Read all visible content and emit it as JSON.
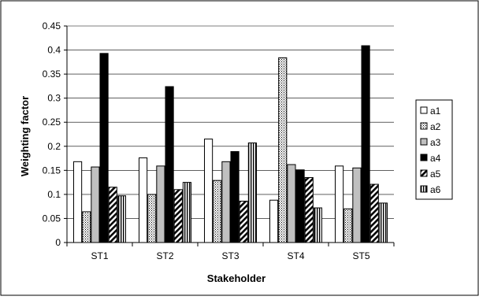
{
  "chart_data": {
    "type": "bar",
    "xlabel": "Stakeholder",
    "ylabel": "Weighting factor",
    "categories": [
      "ST1",
      "ST2",
      "ST3",
      "ST4",
      "ST5"
    ],
    "ylim": [
      0,
      0.45
    ],
    "yticks": [
      "0",
      "0.05",
      "0.1",
      "0.15",
      "0.2",
      "0.25",
      "0.3",
      "0.35",
      "0.4",
      "0.45"
    ],
    "grid": "horizontal",
    "legend_position": "right",
    "series": [
      {
        "name": "a1",
        "values": [
          0.168,
          0.176,
          0.215,
          0.088,
          0.159
        ],
        "pattern": "white"
      },
      {
        "name": "a2",
        "values": [
          0.064,
          0.1,
          0.129,
          0.384,
          0.07
        ],
        "pattern": "dotted"
      },
      {
        "name": "a3",
        "values": [
          0.157,
          0.159,
          0.168,
          0.162,
          0.155
        ],
        "pattern": "gray"
      },
      {
        "name": "a4",
        "values": [
          0.393,
          0.324,
          0.189,
          0.151,
          0.409
        ],
        "pattern": "black"
      },
      {
        "name": "a5",
        "values": [
          0.115,
          0.11,
          0.086,
          0.135,
          0.121
        ],
        "pattern": "diagonal"
      },
      {
        "name": "a6",
        "values": [
          0.097,
          0.125,
          0.207,
          0.072,
          0.082
        ],
        "pattern": "vertical"
      }
    ],
    "colors": {
      "outline": "#000000",
      "gray_fill": "#c0c0c0",
      "black_fill": "#000000",
      "grid": "#000000",
      "frame": "#000000"
    }
  }
}
